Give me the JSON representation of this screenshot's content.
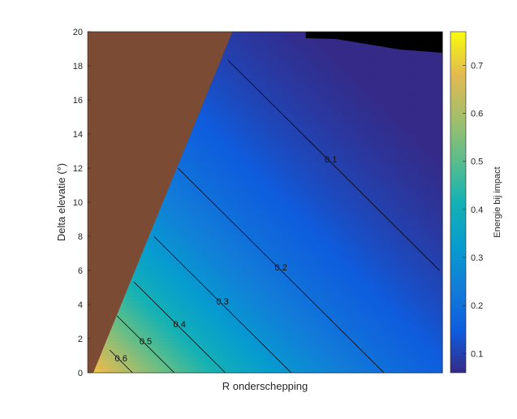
{
  "chart_data": {
    "type": "heatmap",
    "xlabel": "R onderschepping",
    "ylabel": "Delta elevatie (°)",
    "ylim": [
      0,
      20
    ],
    "yticks": [
      "0",
      "2",
      "4",
      "6",
      "8",
      "10",
      "12",
      "14",
      "16",
      "18",
      "20"
    ],
    "colorbar": {
      "label": "Energie bij impact",
      "range": [
        0.06,
        0.77
      ],
      "ticks": [
        "0.1",
        "0.2",
        "0.3",
        "0.4",
        "0.5",
        "0.6",
        "0.7"
      ],
      "colormap": "parula"
    },
    "masked_region_color": "#7b4b33",
    "no_data_color": "#000000",
    "contour_levels": [
      {
        "level": 0.1,
        "label": "0.1"
      },
      {
        "level": 0.2,
        "label": "0.2"
      },
      {
        "level": 0.3,
        "label": "0.3"
      },
      {
        "level": 0.4,
        "label": "0.4"
      },
      {
        "level": 0.5,
        "label": "0.5"
      },
      {
        "level": 0.6,
        "label": "0.6"
      }
    ],
    "grid": false
  }
}
